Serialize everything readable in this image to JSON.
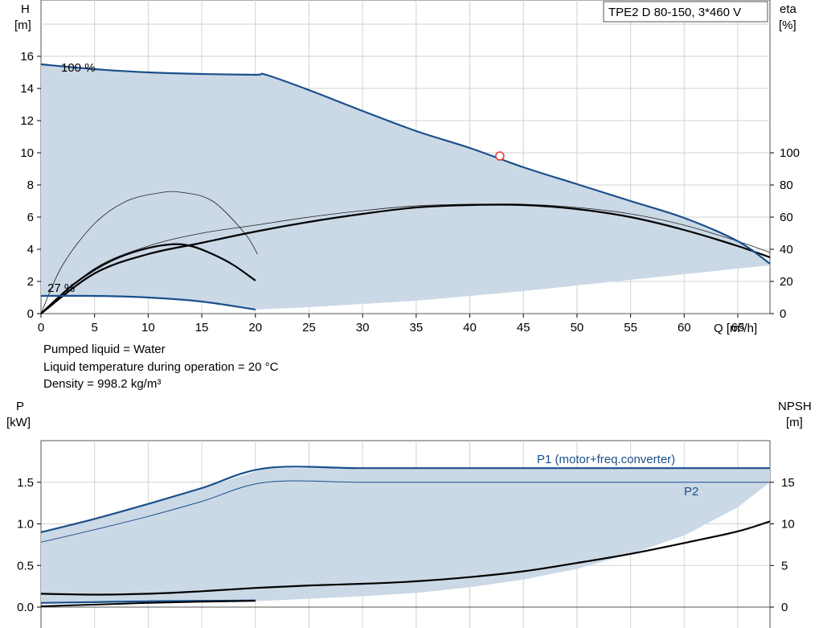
{
  "chart_data": [
    {
      "type": "line",
      "title": "TPE2 D 80-150, 3*460 V",
      "x_axis": {
        "label": "Q [m³/h]",
        "range": [
          0,
          68
        ],
        "ticks": [
          0,
          5,
          10,
          15,
          20,
          25,
          30,
          35,
          40,
          45,
          50,
          55,
          60,
          65
        ]
      },
      "y_left": {
        "label_top": "H",
        "label_unit": "[m]",
        "range": [
          0,
          19.5
        ],
        "ticks": [
          0,
          2,
          4,
          6,
          8,
          10,
          12,
          14,
          16
        ]
      },
      "y_right": {
        "label_top": "eta",
        "label_unit": "[%]",
        "range": [
          0,
          195
        ],
        "ticks": [
          0,
          20,
          40,
          60,
          80,
          100
        ]
      },
      "grid": true,
      "annotations": [
        {
          "text": "100 %",
          "x": 2,
          "y": 15.3
        },
        {
          "text": "27 %",
          "x": 0.7,
          "y": 1.2
        }
      ],
      "operating_point": {
        "x": 42.8,
        "y": 9.8
      },
      "series": [
        {
          "role": "head_max",
          "axis": "left",
          "x": [
            0,
            5,
            10,
            15,
            20,
            21,
            25,
            30,
            35,
            40,
            45,
            50,
            55,
            60,
            65,
            68
          ],
          "y": [
            15.5,
            15.2,
            15.0,
            14.9,
            14.85,
            14.85,
            13.9,
            12.6,
            11.35,
            10.3,
            9.1,
            8.05,
            7.0,
            5.95,
            4.5,
            3.1
          ]
        },
        {
          "role": "head_min",
          "axis": "left",
          "x": [
            0,
            5,
            10,
            15,
            20
          ],
          "y": [
            1.1,
            1.1,
            1.0,
            0.75,
            0.25
          ]
        },
        {
          "role": "area_lower",
          "axis": "left",
          "x": [
            20,
            25,
            30,
            35,
            40,
            45,
            50,
            55,
            60,
            65,
            68
          ],
          "y": [
            0.25,
            0.4,
            0.6,
            0.8,
            1.1,
            1.4,
            1.75,
            2.1,
            2.45,
            2.8,
            3.0
          ]
        },
        {
          "role": "eta_max_speed",
          "axis": "right",
          "x": [
            0,
            5,
            10,
            15,
            20,
            25,
            30,
            35,
            40,
            45,
            50,
            55,
            60,
            65,
            68
          ],
          "y": [
            0,
            25,
            37,
            44,
            51,
            57,
            62,
            66,
            67.5,
            67.5,
            65,
            60,
            52,
            42,
            35
          ]
        },
        {
          "role": "eta_min_speed",
          "axis": "right",
          "x": [
            0,
            3,
            6,
            9,
            12,
            14,
            16,
            18,
            20
          ],
          "y": [
            0,
            18,
            31,
            39,
            43,
            42,
            37,
            30,
            20.5
          ]
        },
        {
          "role": "eta_thin_max",
          "axis": "right",
          "x": [
            0,
            5,
            10,
            15,
            20,
            25,
            30,
            35,
            40,
            45,
            50,
            55,
            60,
            65,
            68
          ],
          "y": [
            0,
            28,
            42,
            50,
            55,
            60,
            64,
            67,
            68,
            68,
            66,
            62,
            55,
            45,
            38
          ]
        },
        {
          "role": "eta_thin_min",
          "axis": "right",
          "x": [
            0,
            2,
            5,
            8,
            11,
            13,
            16,
            19,
            20.2
          ],
          "y": [
            0,
            30,
            56,
            70,
            75,
            75.5,
            70,
            50,
            37
          ]
        }
      ]
    },
    {
      "type": "line",
      "x_axis": {
        "range": [
          0,
          68
        ]
      },
      "y_left": {
        "label_top": "P",
        "label_unit": "[kW]",
        "range": [
          0,
          2.0
        ],
        "ticks": [
          0.0,
          0.5,
          1.0,
          1.5
        ],
        "tick_labels": [
          "0.0",
          "0.5",
          "1.0",
          "1.5"
        ]
      },
      "y_right": {
        "label_top": "NPSH",
        "label_unit": "[m]",
        "range": [
          0,
          20
        ],
        "ticks": [
          0,
          5,
          10,
          15
        ],
        "tick_labels": [
          "0",
          "5",
          "10",
          "15"
        ]
      },
      "grid": true,
      "series": [
        {
          "name": "P1 (motor+freq.converter)",
          "axis": "left",
          "x": [
            0,
            5,
            10,
            15,
            21,
            30,
            40,
            50,
            60,
            68
          ],
          "y": [
            0.9,
            1.06,
            1.24,
            1.43,
            1.67,
            1.67,
            1.67,
            1.67,
            1.67,
            1.67
          ]
        },
        {
          "name": "P2",
          "axis": "left",
          "x": [
            0,
            5,
            10,
            15,
            21,
            30,
            40,
            50,
            60,
            68
          ],
          "y": [
            0.78,
            0.93,
            1.09,
            1.27,
            1.5,
            1.5,
            1.5,
            1.5,
            1.5,
            1.5
          ]
        },
        {
          "role": "p_min",
          "axis": "left",
          "x": [
            0,
            5,
            10,
            15,
            20
          ],
          "y": [
            0.05,
            0.06,
            0.07,
            0.075,
            0.08
          ]
        },
        {
          "role": "p_min_lower",
          "axis": "left",
          "x": [
            0,
            5,
            10,
            15,
            20
          ],
          "y": [
            0.01,
            0.03,
            0.05,
            0.065,
            0.075
          ]
        },
        {
          "role": "npsh",
          "axis": "right",
          "x": [
            0,
            5,
            10,
            15,
            20,
            25,
            30,
            35,
            40,
            45,
            50,
            55,
            60,
            65,
            68
          ],
          "y": [
            1.6,
            1.5,
            1.6,
            1.9,
            2.3,
            2.6,
            2.8,
            3.1,
            3.6,
            4.3,
            5.3,
            6.4,
            7.7,
            9.1,
            10.3
          ]
        },
        {
          "role": "area_lower",
          "axis": "left",
          "x": [
            20,
            25,
            30,
            35,
            40,
            45,
            50,
            55,
            60,
            65,
            68
          ],
          "y": [
            0.07,
            0.1,
            0.13,
            0.17,
            0.24,
            0.33,
            0.46,
            0.64,
            0.86,
            1.2,
            1.5
          ]
        }
      ]
    }
  ],
  "notes": {
    "line1": "Pumped liquid = Water",
    "line2": "Liquid temperature during operation = 20 °C",
    "line3": "Density = 998.2 kg/m³"
  },
  "colors": {
    "area": "#cbd8e6",
    "blue": "#1a4f8b",
    "grid": "#d2d2d2"
  }
}
